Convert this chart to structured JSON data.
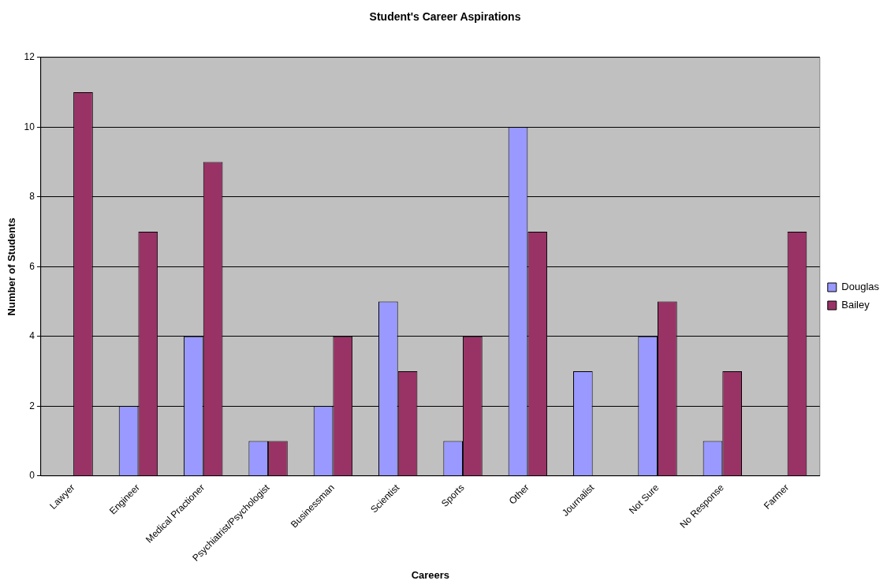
{
  "chart_data": {
    "type": "bar",
    "title": "Student's Career Aspirations",
    "xlabel": "Careers",
    "ylabel": "Number of Students",
    "categories": [
      "Lawyer",
      "Engineer",
      "Medical Practioner",
      "Psychiatrist/Psychologist",
      "Businessman",
      "Scientist",
      "Sports",
      "Other",
      "Journalist",
      "Not Sure",
      "No Response",
      "Farmer"
    ],
    "series": [
      {
        "name": "Douglas",
        "color": "#9999ff",
        "values": [
          0,
          2,
          4,
          1,
          2,
          5,
          1,
          10,
          3,
          4,
          1,
          0
        ]
      },
      {
        "name": "Bailey",
        "color": "#993366",
        "values": [
          11,
          7,
          9,
          1,
          4,
          3,
          4,
          7,
          0,
          5,
          3,
          7
        ]
      }
    ],
    "ylim": [
      0,
      12
    ],
    "yticks": [
      0,
      2,
      4,
      6,
      8,
      10,
      12
    ],
    "grid": "y",
    "legend": "right"
  }
}
